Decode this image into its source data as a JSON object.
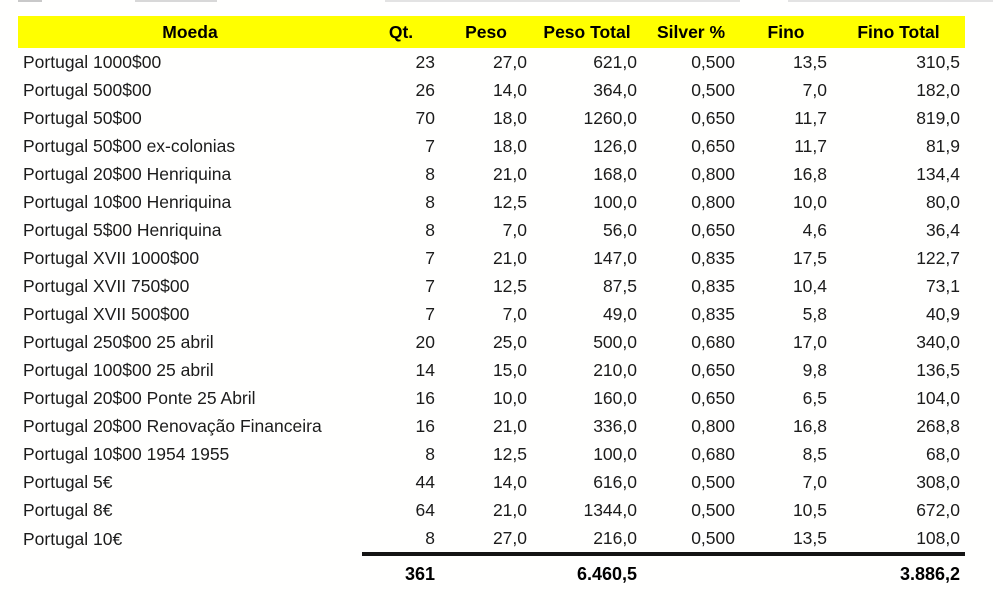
{
  "colors": {
    "header_bg": "#ffff00",
    "header_text": "#000000",
    "body_text": "#1c1c1c",
    "total_rule": "#141414"
  },
  "table": {
    "columns": [
      "Moeda",
      "Qt.",
      "Peso",
      "Peso Total",
      "Silver %",
      "Fino",
      "Fino Total"
    ],
    "column_keys": [
      "moeda",
      "qt",
      "peso",
      "peso_total",
      "silver_pct",
      "fino",
      "fino_total"
    ],
    "rows": [
      [
        "Portugal 1000$00",
        "23",
        "27,0",
        "621,0",
        "0,500",
        "13,5",
        "310,5"
      ],
      [
        "Portugal 500$00",
        "26",
        "14,0",
        "364,0",
        "0,500",
        "7,0",
        "182,0"
      ],
      [
        "Portugal 50$00",
        "70",
        "18,0",
        "1260,0",
        "0,650",
        "11,7",
        "819,0"
      ],
      [
        "Portugal 50$00 ex-colonias",
        "7",
        "18,0",
        "126,0",
        "0,650",
        "11,7",
        "81,9"
      ],
      [
        "Portugal 20$00 Henriquina",
        "8",
        "21,0",
        "168,0",
        "0,800",
        "16,8",
        "134,4"
      ],
      [
        "Portugal 10$00 Henriquina",
        "8",
        "12,5",
        "100,0",
        "0,800",
        "10,0",
        "80,0"
      ],
      [
        "Portugal 5$00 Henriquina",
        "8",
        "7,0",
        "56,0",
        "0,650",
        "4,6",
        "36,4"
      ],
      [
        "Portugal XVII 1000$00",
        "7",
        "21,0",
        "147,0",
        "0,835",
        "17,5",
        "122,7"
      ],
      [
        "Portugal XVII 750$00",
        "7",
        "12,5",
        "87,5",
        "0,835",
        "10,4",
        "73,1"
      ],
      [
        "Portugal XVII 500$00",
        "7",
        "7,0",
        "49,0",
        "0,835",
        "5,8",
        "40,9"
      ],
      [
        "Portugal 250$00 25 abril",
        "20",
        "25,0",
        "500,0",
        "0,680",
        "17,0",
        "340,0"
      ],
      [
        "Portugal 100$00 25 abril",
        "14",
        "15,0",
        "210,0",
        "0,650",
        "9,8",
        "136,5"
      ],
      [
        "Portugal 20$00 Ponte 25 Abril",
        "16",
        "10,0",
        "160,0",
        "0,650",
        "6,5",
        "104,0"
      ],
      [
        "Portugal 20$00 Renovação Financeira",
        "16",
        "21,0",
        "336,0",
        "0,800",
        "16,8",
        "268,8"
      ],
      [
        "Portugal 10$00 1954 1955",
        "8",
        "12,5",
        "100,0",
        "0,680",
        "8,5",
        "68,0"
      ],
      [
        "Portugal 5€",
        "44",
        "14,0",
        "616,0",
        "0,500",
        "7,0",
        "308,0"
      ],
      [
        "Portugal 8€",
        "64",
        "21,0",
        "1344,0",
        "0,500",
        "10,5",
        "672,0"
      ],
      [
        "Portugal 10€",
        "8",
        "27,0",
        "216,0",
        "0,500",
        "13,5",
        "108,0"
      ]
    ],
    "totals": {
      "qt": "361",
      "peso_total": "6.460,5",
      "fino_total": "3.886,2"
    }
  }
}
